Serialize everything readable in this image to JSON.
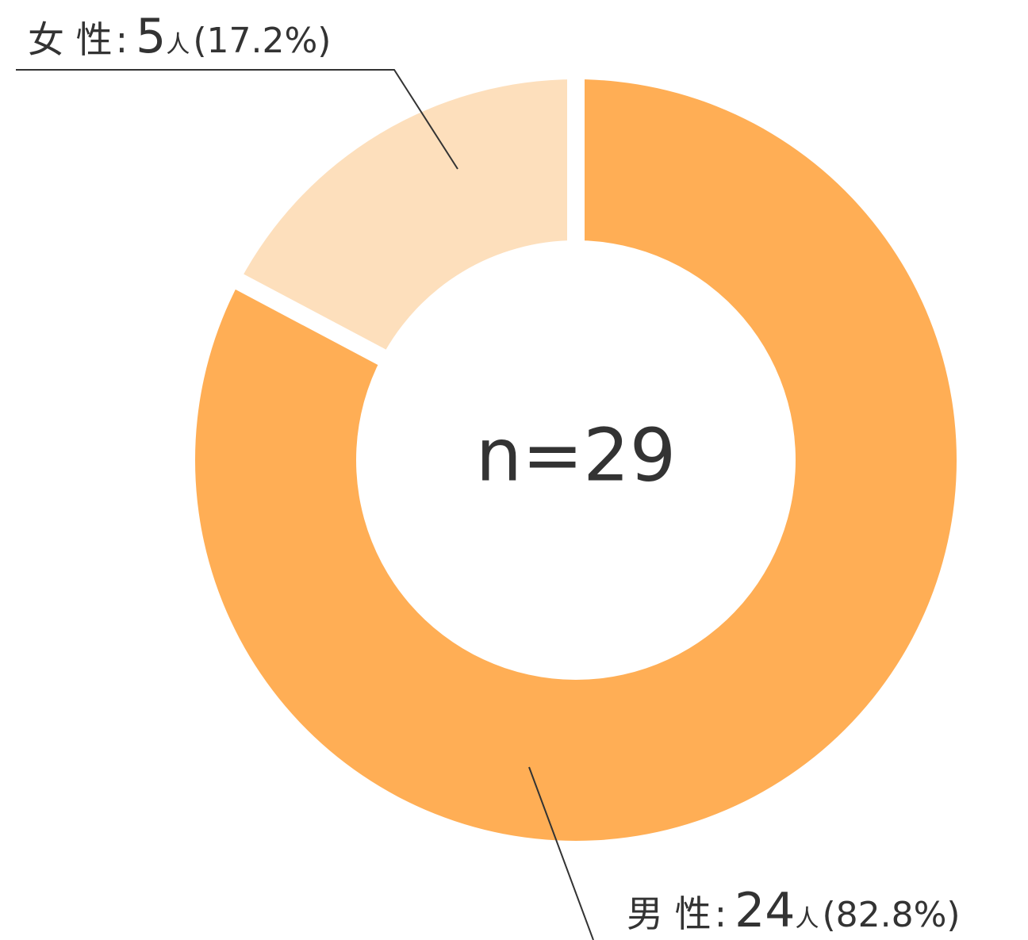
{
  "chart_data": {
    "type": "pie",
    "categories": [
      "男 性",
      "女 性"
    ],
    "values": [
      24,
      5
    ],
    "value_labels": [
      "24人",
      "5人"
    ],
    "percent_labels": [
      "(82.8%)",
      "(17.2%)"
    ],
    "label_separator": ":",
    "colors": [
      "#ffae55",
      "#fddfbc"
    ],
    "center_label": "n=29",
    "donut": true
  }
}
